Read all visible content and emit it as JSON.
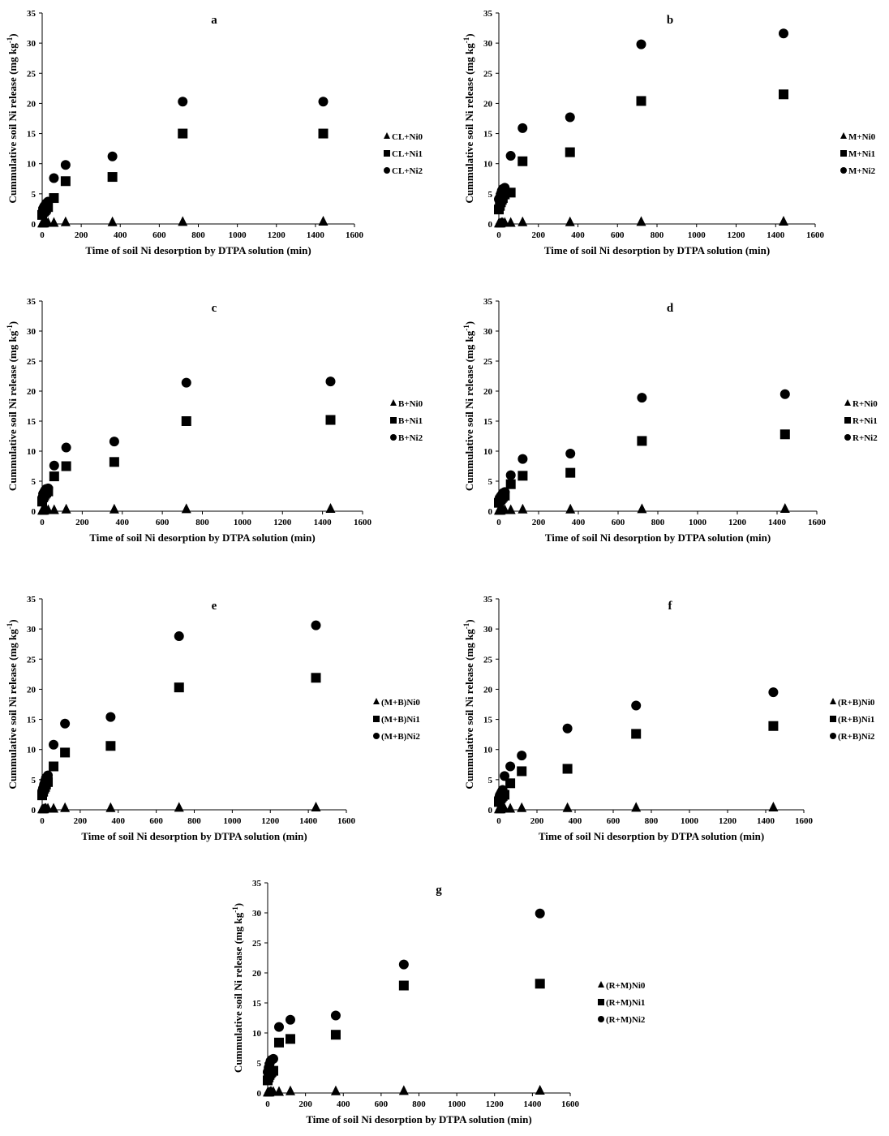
{
  "charts": [
    {
      "panel": "a",
      "type": "scatter",
      "title": "a",
      "xlabel": "Time of soil Ni desorption by DTPA solution (min)",
      "ylabel": "Cummulative soil Ni release (mg kg",
      "ylabel_sup": "-1",
      "ylabel_close": ")",
      "xlim": [
        0,
        1600
      ],
      "ylim": [
        0,
        35
      ],
      "xticks": [
        "0",
        "200",
        "400",
        "600",
        "800",
        "1000",
        "1200",
        "1400",
        "1600"
      ],
      "yticks": [
        "0",
        "5",
        "10",
        "15",
        "20",
        "25",
        "30",
        "35"
      ],
      "legend_position": "right",
      "series": [
        {
          "name": "CL+Ni0",
          "marker": "triangle",
          "x": [
            0,
            5,
            10,
            15,
            20,
            30,
            60,
            120,
            360,
            720,
            1440
          ],
          "y": [
            0.1,
            0.1,
            0.1,
            0.2,
            0.2,
            0.2,
            0.2,
            0.3,
            0.3,
            0.35,
            0.4
          ]
        },
        {
          "name": "CL+Ni1",
          "marker": "square",
          "x": [
            0,
            5,
            10,
            15,
            20,
            30,
            60,
            120,
            360,
            720,
            1440
          ],
          "y": [
            1.5,
            2.0,
            2.1,
            2.3,
            2.5,
            2.8,
            4.3,
            7.1,
            7.8,
            15.0,
            15.0
          ]
        },
        {
          "name": "CL+Ni2",
          "marker": "circle",
          "x": [
            0,
            5,
            10,
            15,
            20,
            30,
            60,
            120,
            360,
            720,
            1440
          ],
          "y": [
            1.9,
            2.6,
            2.9,
            3.1,
            3.4,
            3.7,
            7.6,
            9.8,
            11.2,
            20.3,
            20.3
          ]
        }
      ]
    },
    {
      "panel": "b",
      "type": "scatter",
      "title": "b",
      "xlabel": "Time of soil Ni desorption by DTPA solution (min)",
      "ylabel": "Cummulative soil Ni release (mg kg",
      "ylabel_sup": "-1",
      "ylabel_close": ")",
      "xlim": [
        0,
        1600
      ],
      "ylim": [
        0,
        35
      ],
      "xticks": [
        "0",
        "200",
        "400",
        "600",
        "800",
        "1000",
        "1200",
        "1400",
        "1600"
      ],
      "yticks": [
        "0",
        "5",
        "10",
        "15",
        "20",
        "25",
        "30",
        "35"
      ],
      "legend_position": "right",
      "series": [
        {
          "name": "M+Ni0",
          "marker": "triangle",
          "x": [
            0,
            5,
            10,
            15,
            20,
            30,
            60,
            120,
            360,
            720,
            1440
          ],
          "y": [
            0.1,
            0.1,
            0.1,
            0.2,
            0.2,
            0.2,
            0.2,
            0.3,
            0.3,
            0.35,
            0.4
          ]
        },
        {
          "name": "M+Ni1",
          "marker": "square",
          "x": [
            0,
            5,
            10,
            15,
            20,
            30,
            60,
            120,
            360,
            720,
            1440
          ],
          "y": [
            2.4,
            3.0,
            3.6,
            4.0,
            4.3,
            4.9,
            5.2,
            10.4,
            11.9,
            20.4,
            21.5
          ]
        },
        {
          "name": "M+Ni2",
          "marker": "circle",
          "x": [
            0,
            5,
            10,
            15,
            20,
            30,
            60,
            120,
            360,
            720,
            1440
          ],
          "y": [
            4.1,
            4.4,
            5.0,
            5.5,
            5.8,
            6.0,
            11.3,
            15.9,
            17.7,
            29.8,
            31.6
          ]
        }
      ]
    },
    {
      "panel": "c",
      "type": "scatter",
      "title": "c",
      "xlabel": "Time of soil Ni desorption by DTPA solution (min)",
      "ylabel": "Cummulative soil Ni release (mg kg",
      "ylabel_sup": "-1",
      "ylabel_close": ")",
      "xlim": [
        0,
        1600
      ],
      "ylim": [
        0,
        35
      ],
      "xticks": [
        "0",
        "200",
        "400",
        "600",
        "800",
        "1000",
        "1200",
        "1400",
        "1600"
      ],
      "yticks": [
        "0",
        "5",
        "10",
        "15",
        "20",
        "25",
        "30",
        "35"
      ],
      "legend_position": "right",
      "series": [
        {
          "name": "B+Ni0",
          "marker": "triangle",
          "x": [
            0,
            5,
            10,
            15,
            20,
            30,
            60,
            120,
            360,
            720,
            1440
          ],
          "y": [
            0.1,
            0.1,
            0.1,
            0.2,
            0.2,
            0.2,
            0.2,
            0.3,
            0.3,
            0.35,
            0.4
          ]
        },
        {
          "name": "B+Ni1",
          "marker": "square",
          "x": [
            0,
            5,
            10,
            15,
            20,
            30,
            60,
            120,
            360,
            720,
            1440
          ],
          "y": [
            1.6,
            2.3,
            2.6,
            2.9,
            3.1,
            3.3,
            5.8,
            7.5,
            8.2,
            15.0,
            15.2
          ]
        },
        {
          "name": "B+Ni2",
          "marker": "circle",
          "x": [
            0,
            5,
            10,
            15,
            20,
            30,
            60,
            120,
            360,
            720,
            1440
          ],
          "y": [
            2.2,
            2.9,
            3.2,
            3.5,
            3.7,
            3.8,
            7.6,
            10.6,
            11.6,
            21.4,
            21.6
          ]
        }
      ]
    },
    {
      "panel": "d",
      "type": "scatter",
      "title": "d",
      "xlabel": "Time of soil Ni desorption by DTPA solution (min)",
      "ylabel": "Cummulative soil Ni release (mg kg",
      "ylabel_sup": "-1",
      "ylabel_close": ")",
      "xlim": [
        0,
        1600
      ],
      "ylim": [
        0,
        35
      ],
      "xticks": [
        "0",
        "200",
        "400",
        "600",
        "800",
        "1000",
        "1200",
        "1400",
        "1600"
      ],
      "yticks": [
        "0",
        "5",
        "10",
        "15",
        "20",
        "25",
        "30",
        "35"
      ],
      "legend_position": "right",
      "series": [
        {
          "name": "R+Ni0",
          "marker": "triangle",
          "x": [
            0,
            5,
            10,
            15,
            20,
            30,
            60,
            120,
            360,
            720,
            1440
          ],
          "y": [
            0.1,
            0.1,
            0.1,
            0.2,
            0.2,
            0.2,
            0.2,
            0.3,
            0.3,
            0.35,
            0.4
          ]
        },
        {
          "name": "R+Ni1",
          "marker": "square",
          "x": [
            0,
            5,
            10,
            15,
            20,
            30,
            60,
            120,
            360,
            720,
            1440
          ],
          "y": [
            1.4,
            1.8,
            2.0,
            2.2,
            2.4,
            2.6,
            4.5,
            5.9,
            6.4,
            11.7,
            12.8
          ]
        },
        {
          "name": "R+Ni2",
          "marker": "circle",
          "x": [
            0,
            5,
            10,
            15,
            20,
            30,
            60,
            120,
            360,
            720,
            1440
          ],
          "y": [
            1.8,
            2.2,
            2.5,
            2.7,
            3.0,
            3.2,
            6.0,
            8.7,
            9.6,
            18.9,
            19.5
          ]
        }
      ]
    },
    {
      "panel": "e",
      "type": "scatter",
      "title": "e",
      "xlabel": "Time of soil Ni desorption by DTPA solution (min)",
      "ylabel": "Cummulative soil Ni release (mg kg",
      "ylabel_sup": "-1",
      "ylabel_close": ")",
      "xlim": [
        0,
        1600
      ],
      "ylim": [
        0,
        35
      ],
      "xticks": [
        "0",
        "200",
        "400",
        "600",
        "800",
        "1000",
        "1200",
        "1400",
        "1600"
      ],
      "yticks": [
        "0",
        "5",
        "10",
        "15",
        "20",
        "25",
        "30",
        "35"
      ],
      "legend_position": "right",
      "series": [
        {
          "name": "(M+B)Ni0",
          "marker": "triangle",
          "x": [
            0,
            5,
            10,
            15,
            20,
            30,
            60,
            120,
            360,
            720,
            1440
          ],
          "y": [
            0.1,
            0.1,
            0.1,
            0.2,
            0.2,
            0.2,
            0.2,
            0.3,
            0.3,
            0.35,
            0.4
          ]
        },
        {
          "name": "(M+B)Ni1",
          "marker": "square",
          "x": [
            0,
            5,
            10,
            15,
            20,
            30,
            60,
            120,
            360,
            720,
            1440
          ],
          "y": [
            2.4,
            3.0,
            3.5,
            3.8,
            4.2,
            4.6,
            7.2,
            9.5,
            10.6,
            20.3,
            21.9
          ]
        },
        {
          "name": "(M+B)Ni2",
          "marker": "circle",
          "x": [
            0,
            5,
            10,
            15,
            20,
            30,
            60,
            120,
            360,
            720,
            1440
          ],
          "y": [
            3.1,
            3.6,
            4.2,
            4.8,
            5.3,
            5.7,
            10.8,
            14.3,
            15.4,
            28.8,
            30.6
          ]
        }
      ]
    },
    {
      "panel": "f",
      "type": "scatter",
      "title": "f",
      "xlabel": "Time of soil Ni desorption by DTPA solution (min)",
      "ylabel": "Cummulative soil Ni release (mg kg",
      "ylabel_sup": "-1",
      "ylabel_close": ")",
      "xlim": [
        0,
        1600
      ],
      "ylim": [
        0,
        35
      ],
      "xticks": [
        "0",
        "200",
        "400",
        "600",
        "800",
        "1000",
        "1200",
        "1400",
        "1600"
      ],
      "yticks": [
        "0",
        "5",
        "10",
        "15",
        "20",
        "25",
        "30",
        "35"
      ],
      "legend_position": "right",
      "series": [
        {
          "name": "(R+B)Ni0",
          "marker": "triangle",
          "x": [
            0,
            5,
            10,
            15,
            20,
            30,
            60,
            120,
            360,
            720,
            1440
          ],
          "y": [
            0.1,
            0.1,
            0.1,
            0.2,
            0.2,
            0.2,
            0.2,
            0.3,
            0.3,
            0.35,
            0.4
          ]
        },
        {
          "name": "(R+B)Ni1",
          "marker": "square",
          "x": [
            0,
            5,
            10,
            15,
            20,
            30,
            60,
            120,
            360,
            720,
            1440
          ],
          "y": [
            1.3,
            1.7,
            1.9,
            2.1,
            2.3,
            2.5,
            4.4,
            6.4,
            6.8,
            12.6,
            13.9
          ]
        },
        {
          "name": "(R+B)Ni2",
          "marker": "circle",
          "x": [
            0,
            5,
            10,
            15,
            20,
            30,
            60,
            120,
            360,
            720,
            1440
          ],
          "y": [
            1.9,
            2.4,
            2.7,
            3.0,
            3.3,
            5.6,
            7.2,
            9.0,
            13.5,
            17.3,
            19.5
          ]
        }
      ]
    },
    {
      "panel": "g",
      "type": "scatter",
      "title": "g",
      "xlabel": "Time of soil Ni desorption by DTPA solution (min)",
      "ylabel": "Cummulative soil Ni release (mg kg",
      "ylabel_sup": "-1",
      "ylabel_close": ")",
      "xlim": [
        0,
        1600
      ],
      "ylim": [
        0,
        35
      ],
      "xticks": [
        "0",
        "200",
        "400",
        "600",
        "800",
        "1000",
        "1200",
        "1400",
        "1600"
      ],
      "yticks": [
        "0",
        "5",
        "10",
        "15",
        "20",
        "25",
        "30",
        "35"
      ],
      "legend_position": "right",
      "series": [
        {
          "name": "(R+M)Ni0",
          "marker": "triangle",
          "x": [
            0,
            5,
            10,
            15,
            20,
            30,
            60,
            120,
            360,
            720,
            1440
          ],
          "y": [
            0.1,
            0.1,
            0.1,
            0.2,
            0.2,
            0.2,
            0.2,
            0.3,
            0.3,
            0.35,
            0.4
          ]
        },
        {
          "name": "(R+M)Ni1",
          "marker": "square",
          "x": [
            0,
            5,
            10,
            15,
            20,
            30,
            60,
            120,
            360,
            720,
            1440
          ],
          "y": [
            2.1,
            2.6,
            3.0,
            3.3,
            3.5,
            3.7,
            8.4,
            9.0,
            9.7,
            17.9,
            18.2
          ]
        },
        {
          "name": "(R+M)Ni2",
          "marker": "circle",
          "x": [
            0,
            5,
            10,
            15,
            20,
            30,
            60,
            120,
            360,
            720,
            1440
          ],
          "y": [
            3.5,
            4.2,
            4.8,
            5.3,
            5.5,
            5.7,
            11.0,
            12.2,
            12.9,
            21.4,
            29.9
          ]
        }
      ]
    }
  ]
}
